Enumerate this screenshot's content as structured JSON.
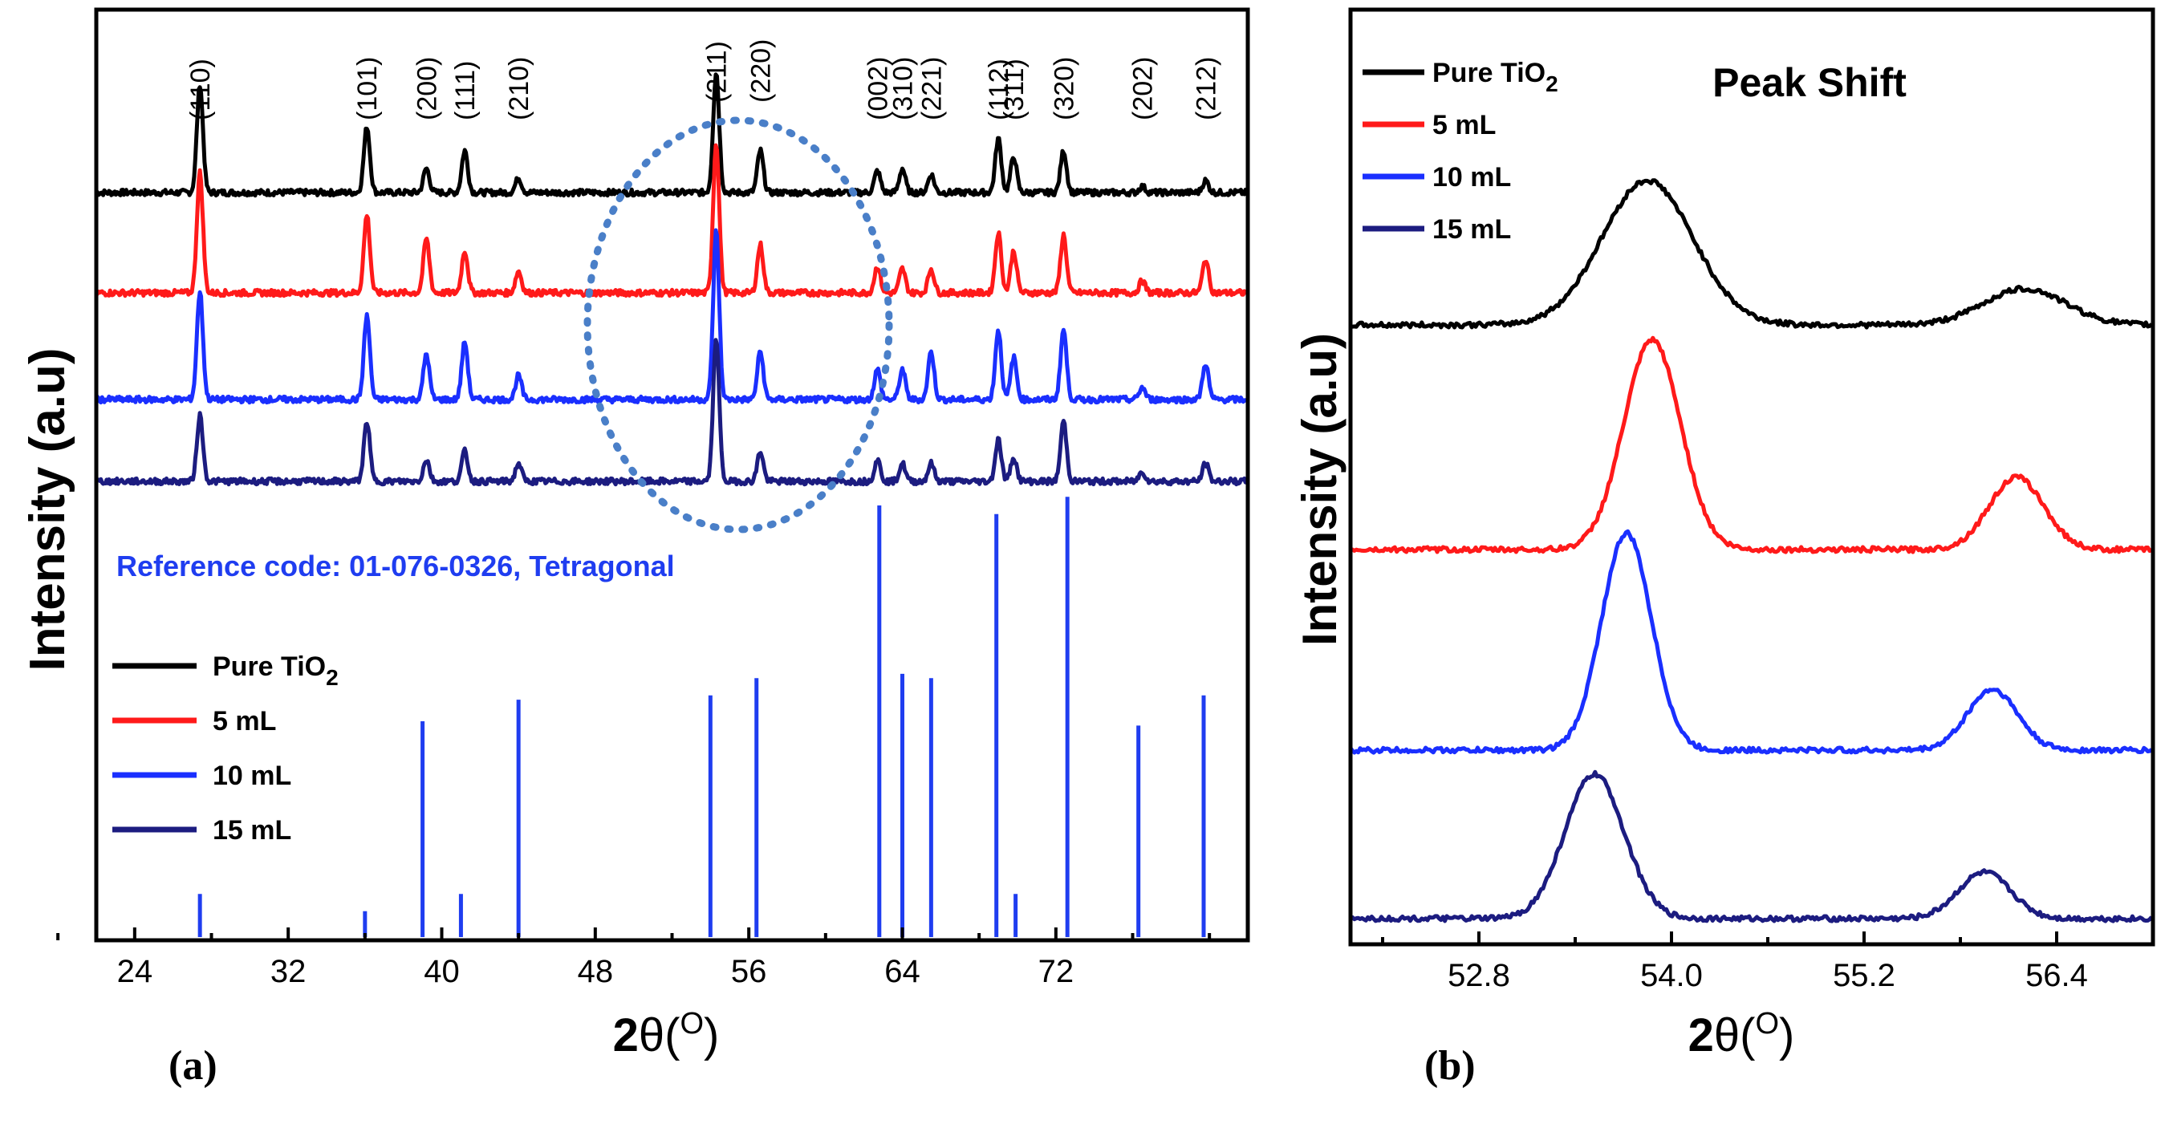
{
  "colors": {
    "black": "#000000",
    "red": "#ff1a1a",
    "blue": "#1a2fff",
    "navy": "#1c1c80",
    "reference": "#1f3df0",
    "highlight": "#4a7fc8"
  },
  "legend": [
    {
      "label_main": "Pure TiO",
      "label_sub": "2",
      "color_key": "black"
    },
    {
      "label_main": "5 mL",
      "label_sub": "",
      "color_key": "red"
    },
    {
      "label_main": "10 mL",
      "label_sub": "",
      "color_key": "blue"
    },
    {
      "label_main": "15 mL",
      "label_sub": "",
      "color_key": "navy"
    }
  ],
  "chart_data": [
    {
      "panel": "(a)",
      "type": "line",
      "xlabel": "2θ(O)",
      "xlabel_main": "2",
      "xlabel_theta": "θ(",
      "xlabel_sup": "O",
      "xlabel_close": ")",
      "ylabel": "Intensity (a.u)",
      "xlim": [
        22,
        82
      ],
      "xticks": [
        24,
        32,
        40,
        48,
        56,
        64,
        72
      ],
      "highlight": "dotted ellipse around (211) and (220) peaks",
      "reference_text": "Reference code: 01-076-0326, Tetragonal",
      "peak_labels": [
        {
          "hkl": "(110)",
          "x": 27.4
        },
        {
          "hkl": "(101)",
          "x": 36.1
        },
        {
          "hkl": "(200)",
          "x": 39.2
        },
        {
          "hkl": "(111)",
          "x": 41.2
        },
        {
          "hkl": "(210)",
          "x": 44.0
        },
        {
          "hkl": "(211)",
          "x": 54.3
        },
        {
          "hkl": "(220)",
          "x": 56.6
        },
        {
          "hkl": "(002)",
          "x": 62.7
        },
        {
          "hkl": "(310)",
          "x": 64.0
        },
        {
          "hkl": "(221)",
          "x": 65.5
        },
        {
          "hkl": "(112)",
          "x": 69.0
        },
        {
          "hkl": "(311)",
          "x": 69.8
        },
        {
          "hkl": "(320)",
          "x": 72.4
        },
        {
          "hkl": "(202)",
          "x": 76.5
        },
        {
          "hkl": "(212)",
          "x": 79.8
        }
      ],
      "series": [
        {
          "name": "Pure TiO2",
          "color_key": "black",
          "offset": 3,
          "peaks": [
            [
              27.4,
              0.9
            ],
            [
              36.1,
              0.55
            ],
            [
              39.2,
              0.2
            ],
            [
              41.2,
              0.35
            ],
            [
              44.0,
              0.12
            ],
            [
              54.3,
              1.0
            ],
            [
              56.6,
              0.35
            ],
            [
              62.7,
              0.18
            ],
            [
              64.0,
              0.2
            ],
            [
              65.5,
              0.15
            ],
            [
              69.0,
              0.45
            ],
            [
              69.8,
              0.3
            ],
            [
              72.4,
              0.35
            ],
            [
              76.5,
              0.05
            ],
            [
              79.8,
              0.1
            ]
          ]
        },
        {
          "name": "5 mL",
          "color_key": "red",
          "offset": 2,
          "peaks": [
            [
              27.4,
              1.0
            ],
            [
              36.1,
              0.65
            ],
            [
              39.2,
              0.45
            ],
            [
              41.2,
              0.35
            ],
            [
              44.0,
              0.18
            ],
            [
              54.3,
              1.25
            ],
            [
              56.6,
              0.4
            ],
            [
              62.7,
              0.22
            ],
            [
              64.0,
              0.2
            ],
            [
              65.5,
              0.2
            ],
            [
              69.0,
              0.5
            ],
            [
              69.8,
              0.35
            ],
            [
              72.4,
              0.48
            ],
            [
              76.5,
              0.1
            ],
            [
              79.8,
              0.28
            ]
          ]
        },
        {
          "name": "10 mL",
          "color_key": "blue",
          "offset": 1,
          "peaks": [
            [
              27.4,
              0.9
            ],
            [
              36.1,
              0.7
            ],
            [
              39.2,
              0.38
            ],
            [
              41.2,
              0.48
            ],
            [
              44.0,
              0.2
            ],
            [
              54.3,
              1.4
            ],
            [
              56.6,
              0.4
            ],
            [
              62.7,
              0.25
            ],
            [
              64.0,
              0.25
            ],
            [
              65.5,
              0.4
            ],
            [
              69.0,
              0.58
            ],
            [
              69.8,
              0.35
            ],
            [
              72.4,
              0.58
            ],
            [
              76.5,
              0.1
            ],
            [
              79.8,
              0.3
            ]
          ]
        },
        {
          "name": "15 mL",
          "color_key": "navy",
          "offset": 0,
          "peaks": [
            [
              27.4,
              0.55
            ],
            [
              36.1,
              0.5
            ],
            [
              39.2,
              0.18
            ],
            [
              41.2,
              0.25
            ],
            [
              44.0,
              0.15
            ],
            [
              54.3,
              1.2
            ],
            [
              56.6,
              0.25
            ],
            [
              62.7,
              0.18
            ],
            [
              64.0,
              0.15
            ],
            [
              65.5,
              0.15
            ],
            [
              69.0,
              0.35
            ],
            [
              69.8,
              0.2
            ],
            [
              72.4,
              0.5
            ],
            [
              76.5,
              0.08
            ],
            [
              79.8,
              0.15
            ]
          ]
        }
      ],
      "reference_lines": [
        [
          27.4,
          0.1
        ],
        [
          36.0,
          0.06
        ],
        [
          39.0,
          0.5
        ],
        [
          41.0,
          0.1
        ],
        [
          44.0,
          0.55
        ],
        [
          54.0,
          0.56
        ],
        [
          56.4,
          0.6
        ],
        [
          62.8,
          1.0
        ],
        [
          64.0,
          0.61
        ],
        [
          65.5,
          0.6
        ],
        [
          68.9,
          0.98
        ],
        [
          69.9,
          0.1
        ],
        [
          72.6,
          1.02
        ],
        [
          76.3,
          0.49
        ],
        [
          79.7,
          0.56
        ]
      ]
    },
    {
      "panel": "(b)",
      "type": "line",
      "title": "Peak Shift",
      "xlabel": "2θ(O)",
      "xlabel_main": "2",
      "xlabel_theta": "θ(",
      "xlabel_sup": "O",
      "xlabel_close": ")",
      "ylabel": "Intensity (a.u)",
      "xlim": [
        52.0,
        57.0
      ],
      "xticks": [
        52.8,
        54.0,
        55.2,
        56.4
      ],
      "series": [
        {
          "name": "Pure TiO2",
          "color_key": "black",
          "offset": 3,
          "main_peak": [
            53.85,
            1.0,
            0.4
          ],
          "second_peak": [
            56.2,
            0.25,
            0.36
          ]
        },
        {
          "name": "5 mL",
          "color_key": "red",
          "offset": 2,
          "main_peak": [
            53.88,
            1.45,
            0.25
          ],
          "second_peak": [
            56.15,
            0.5,
            0.24
          ]
        },
        {
          "name": "10 mL",
          "color_key": "blue",
          "offset": 1,
          "main_peak": [
            53.72,
            1.5,
            0.22
          ],
          "second_peak": [
            56.0,
            0.42,
            0.22
          ]
        },
        {
          "name": "15 mL",
          "color_key": "navy",
          "offset": 0,
          "main_peak": [
            53.52,
            1.0,
            0.26
          ],
          "second_peak": [
            55.95,
            0.32,
            0.23
          ]
        }
      ]
    }
  ]
}
